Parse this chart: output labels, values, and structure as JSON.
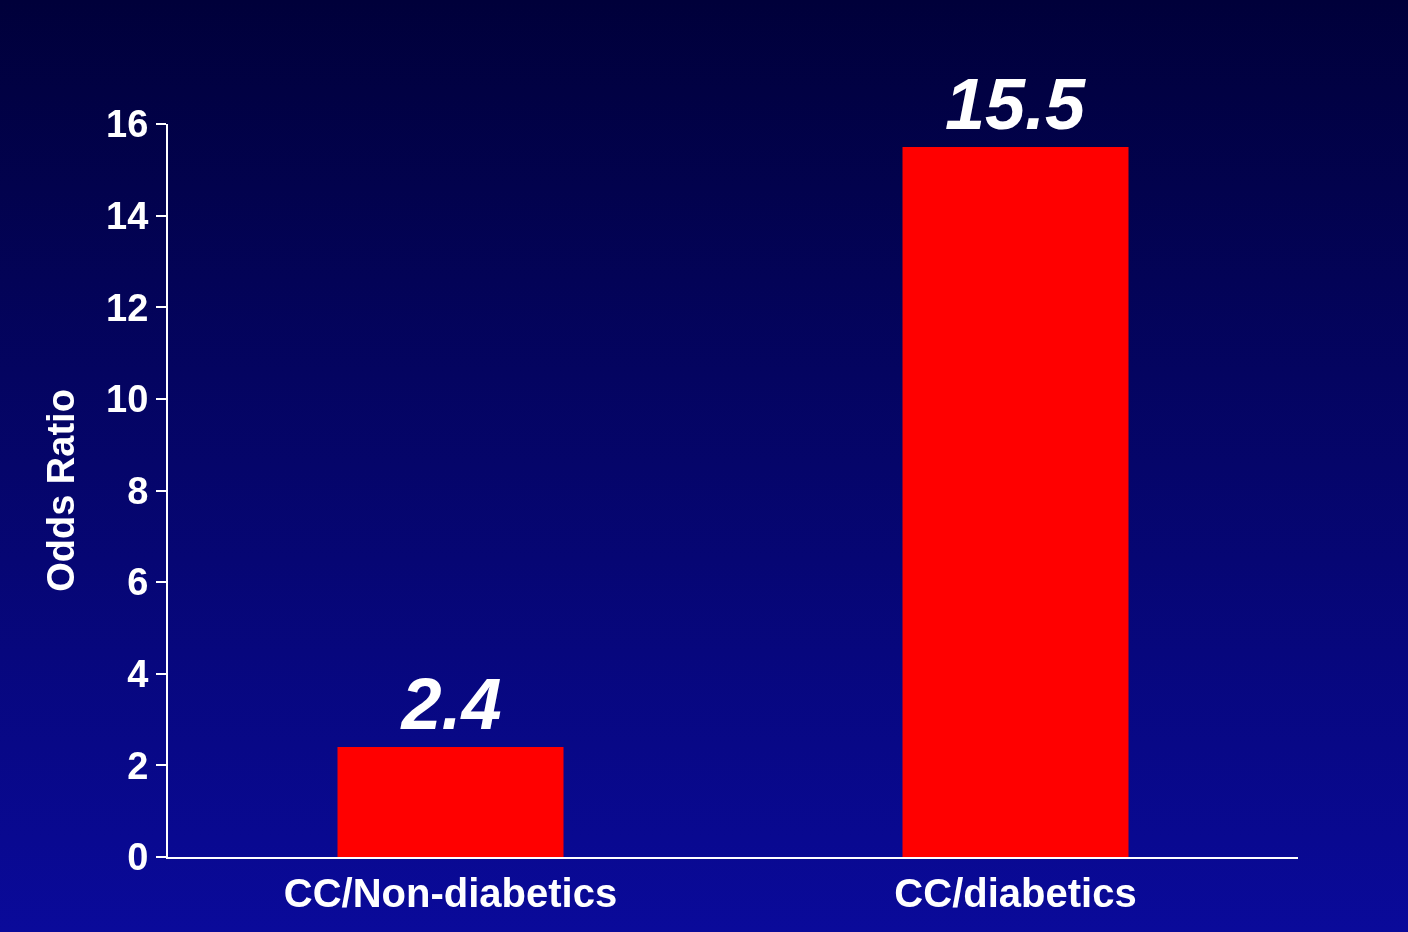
{
  "chart_data": {
    "type": "bar",
    "ylabel": "Odds Ratio",
    "categories": [
      "CC/Non-diabetics",
      "CC/diabetics"
    ],
    "values": [
      2.4,
      15.5
    ],
    "color": "#ff0000",
    "ylim": [
      0,
      16
    ],
    "yticks": [
      0,
      2,
      4,
      6,
      8,
      10,
      12,
      14,
      16
    ],
    "grid": false,
    "data_labels": true
  }
}
